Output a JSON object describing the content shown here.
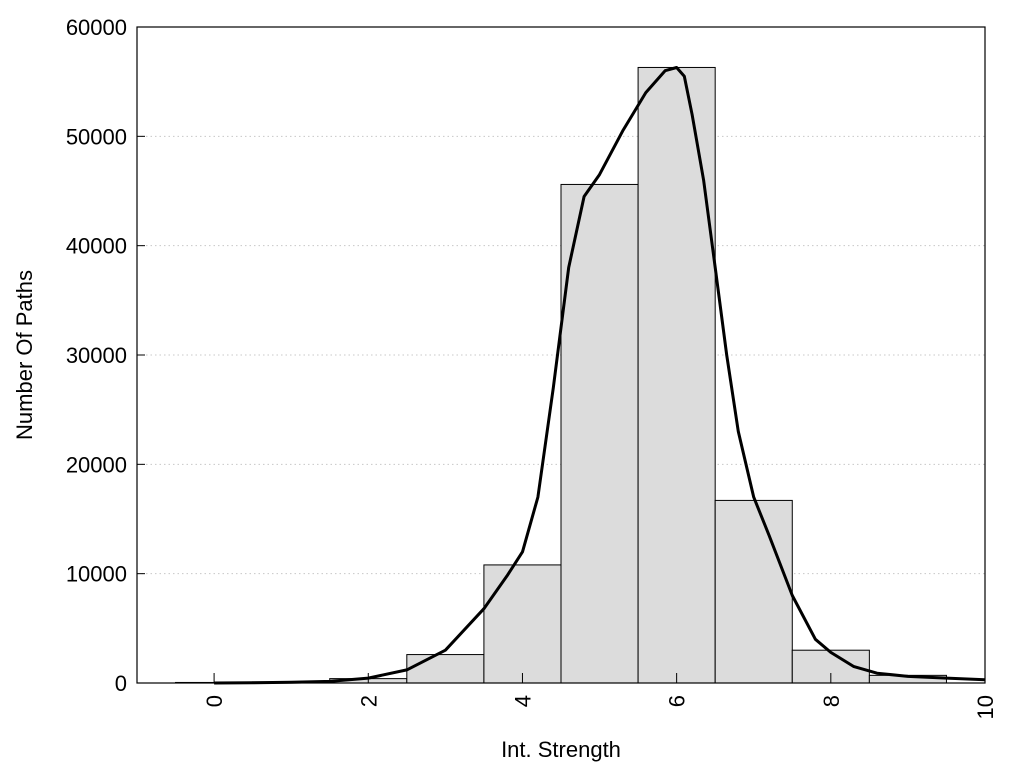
{
  "chart_data": {
    "type": "bar",
    "xlabel": "Int. Strength",
    "ylabel": "Number Of Paths",
    "xlim": [
      -1,
      10
    ],
    "ylim": [
      0,
      60000
    ],
    "x_ticks": [
      0,
      2,
      4,
      6,
      8,
      10
    ],
    "y_ticks": [
      0,
      10000,
      20000,
      30000,
      40000,
      50000,
      60000
    ],
    "grid": "horizontal dotted",
    "bar_color": "#dcdcdc",
    "bar_edge_color": "#000000",
    "line_color": "#000000",
    "bins": [
      {
        "x": 0,
        "value": 50
      },
      {
        "x": 1,
        "value": 100
      },
      {
        "x": 2,
        "value": 400
      },
      {
        "x": 3,
        "value": 2600
      },
      {
        "x": 4,
        "value": 10800
      },
      {
        "x": 5,
        "value": 45600
      },
      {
        "x": 6,
        "value": 56300
      },
      {
        "x": 7,
        "value": 16700
      },
      {
        "x": 8,
        "value": 3000
      },
      {
        "x": 9,
        "value": 700
      }
    ],
    "curve": {
      "x": [
        0,
        0.5,
        1,
        1.5,
        2,
        2.5,
        3,
        3.5,
        3.8,
        4,
        4.2,
        4.4,
        4.6,
        4.8,
        5,
        5.3,
        5.6,
        5.85,
        6,
        6.1,
        6.2,
        6.35,
        6.5,
        6.65,
        6.8,
        7,
        7.2,
        7.5,
        7.8,
        8,
        8.3,
        8.6,
        9,
        9.5,
        10
      ],
      "y": [
        0,
        20,
        60,
        150,
        450,
        1200,
        3000,
        6800,
        9800,
        12000,
        17000,
        27000,
        38000,
        44500,
        46500,
        50500,
        54000,
        56000,
        56300,
        55500,
        52000,
        46000,
        38000,
        30000,
        23000,
        17000,
        13500,
        8000,
        4000,
        2800,
        1500,
        900,
        600,
        450,
        300
      ]
    }
  }
}
